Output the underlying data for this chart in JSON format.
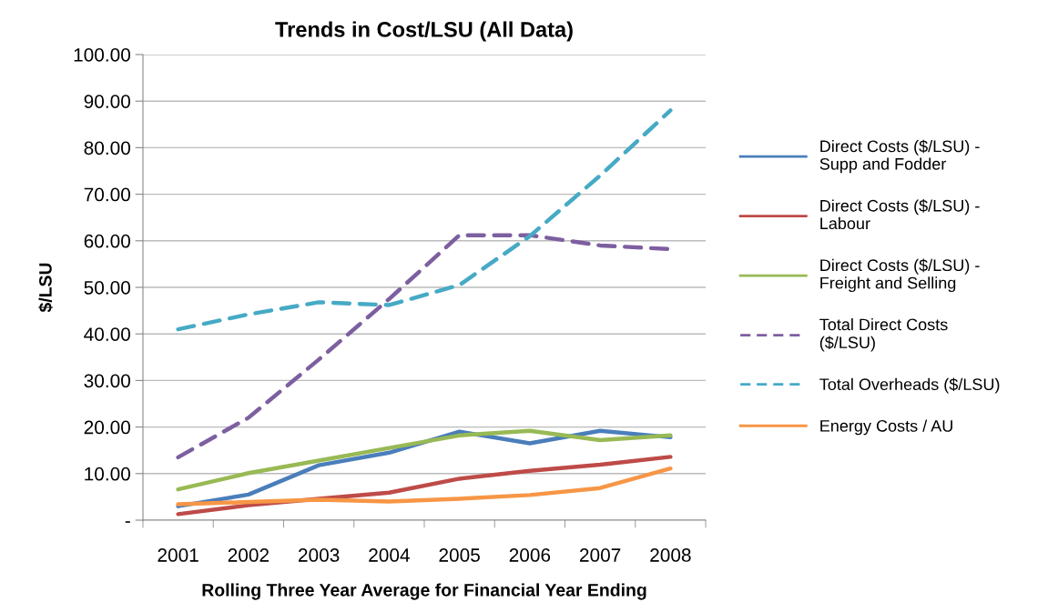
{
  "chart_data": {
    "type": "line",
    "title": "Trends in Cost/LSU (All Data)",
    "xlabel": "Rolling Three Year Average for Financial Year Ending",
    "ylabel": "$/LSU",
    "categories": [
      "2001",
      "2002",
      "2003",
      "2004",
      "2005",
      "2006",
      "2007",
      "2008"
    ],
    "ylim": [
      0,
      100
    ],
    "yticks": [
      {
        "value": 0,
        "label": "-"
      },
      {
        "value": 10,
        "label": "10.00"
      },
      {
        "value": 20,
        "label": "20.00"
      },
      {
        "value": 30,
        "label": "30.00"
      },
      {
        "value": 40,
        "label": "40.00"
      },
      {
        "value": 50,
        "label": "50.00"
      },
      {
        "value": 60,
        "label": "60.00"
      },
      {
        "value": 70,
        "label": "70.00"
      },
      {
        "value": 80,
        "label": "80.00"
      },
      {
        "value": 90,
        "label": "90.00"
      },
      {
        "value": 100,
        "label": "100.00"
      }
    ],
    "grid": "y",
    "legend": "right",
    "marker": "none",
    "series": [
      {
        "name": "Direct Costs ($/LSU) -\nSupp and Fodder",
        "color": "#4a7ebb",
        "line_style": "solid",
        "values": [
          3.0,
          5.5,
          11.8,
          14.5,
          19.0,
          16.5,
          19.2,
          17.8
        ]
      },
      {
        "name": "Direct Costs ($/LSU) -\nLabour",
        "color": "#be4b48",
        "line_style": "solid",
        "values": [
          1.3,
          3.2,
          4.6,
          5.9,
          8.9,
          10.6,
          11.9,
          13.6
        ]
      },
      {
        "name": "Direct Costs ($/LSU) -\nFreight and Selling",
        "color": "#98b954",
        "line_style": "solid",
        "values": [
          6.6,
          10.1,
          12.8,
          15.5,
          18.2,
          19.2,
          17.2,
          18.2
        ]
      },
      {
        "name": "Total Direct Costs\n($/LSU)",
        "color": "#7d5fa0",
        "line_style": "dashed",
        "values": [
          13.5,
          22.0,
          34.5,
          47.5,
          61.2,
          61.2,
          59.0,
          58.2
        ]
      },
      {
        "name": "Total Overheads ($/LSU)",
        "color": "#46aac5",
        "line_style": "dashed",
        "values": [
          41.0,
          44.2,
          46.8,
          46.2,
          50.5,
          61.0,
          74.0,
          88.0
        ]
      },
      {
        "name": "Energy Costs / AU",
        "color": "#f79646",
        "line_style": "solid",
        "values": [
          3.4,
          3.9,
          4.4,
          4.0,
          4.6,
          5.4,
          6.9,
          11.1
        ]
      }
    ]
  }
}
